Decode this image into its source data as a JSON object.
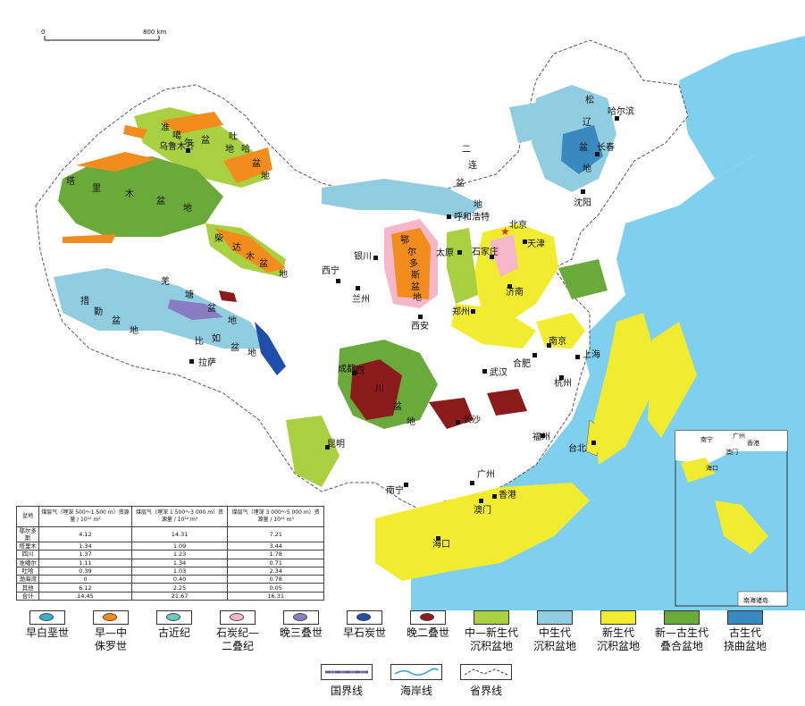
{
  "scale_bar": {
    "start": "0",
    "end": "800 km"
  },
  "labels": {
    "junggar": [
      "准",
      "噶",
      "尔",
      "盆",
      "地"
    ],
    "tarim": [
      "塔",
      "里",
      "木",
      "盆",
      "地"
    ],
    "tuha": [
      "吐",
      "哈",
      "盆",
      "地"
    ],
    "qaidam": [
      "柴",
      "达",
      "木",
      "盆",
      "地"
    ],
    "ordos": [
      "鄂",
      "尔",
      "多",
      "斯",
      "盆",
      "地"
    ],
    "songliao": [
      "松",
      "辽",
      "盆",
      "地"
    ],
    "erlian": [
      "二",
      "连",
      "盆",
      "地"
    ],
    "qiangtang": [
      "羌",
      "塘",
      "盆",
      "地"
    ],
    "cuoqin": [
      "措",
      "勤",
      "盆",
      "地"
    ],
    "bianbiancong": [
      "比",
      "如",
      "盆",
      "地"
    ],
    "sichuan": [
      "四",
      "川",
      "盆",
      "地"
    ]
  },
  "cities": {
    "urumqi": "乌鲁木齐",
    "harbin": "哈尔滨",
    "changchun": "长春",
    "shenyang": "沈阳",
    "beijing": "北京",
    "tianjin": "天津",
    "hohhot": "呼和浩特",
    "taiyuan": "太原",
    "shijiazhuang": "石家庄",
    "jinan": "济南",
    "yinchuan": "银川",
    "xining": "西宁",
    "lanzhou": "兰州",
    "zhengzhou": "郑州",
    "xian": "西安",
    "nanjing": "南京",
    "shanghai": "上海",
    "hefei": "合肥",
    "wuhan": "武汉",
    "hangzhou": "杭州",
    "chengdu": "成都",
    "lhasa": "拉萨",
    "changsha": "长沙",
    "fuzhou": "福州",
    "taipei": "台北",
    "kunming": "昆明",
    "guangzhou": "广州",
    "nanning": "南宁",
    "hongkong": "香港",
    "macao": "澳门",
    "haikou": "海口"
  },
  "inset": {
    "title": "南海诸岛",
    "cities": {
      "nanning": "南宁",
      "guangzhou": "广州",
      "hongkong": "香港",
      "macao": "澳门",
      "haikou": "海口"
    }
  },
  "table": {
    "headers": [
      "盆地",
      "煤层气（埋深 500～1 500 m）资源量 / 10¹² m³",
      "煤层气（埋深 1 500～3 000 m）资源量 / 10¹² m³",
      "煤层气（埋深 3 000～5 000 m）资源量 / 10¹² m³"
    ],
    "rows": [
      [
        "鄂尔多斯",
        "4.12",
        "14.31",
        "7.21"
      ],
      [
        "塔里木",
        "1.34",
        "1.09",
        "3.44"
      ],
      [
        "四川",
        "1.37",
        "1.23",
        "1.78"
      ],
      [
        "准噶尔",
        "1.11",
        "1.34",
        "0.71"
      ],
      [
        "吐哈",
        "0.39",
        "1.03",
        "2.34"
      ],
      [
        "渤海湾",
        "0",
        "0.40",
        "0.78"
      ],
      [
        "其他",
        "6.12",
        "2.25",
        "0.05"
      ],
      [
        "合计",
        "14.45",
        "21.67",
        "16.31"
      ]
    ]
  },
  "legend": {
    "items": [
      {
        "line1": "早白垩世",
        "line2": "",
        "color": "#3ab0c8",
        "type": "ellipse"
      },
      {
        "line1": "早—中",
        "line2": "侏罗世",
        "color": "#f28c1c",
        "type": "ellipse"
      },
      {
        "line1": "古近纪",
        "line2": "",
        "color": "#66ccc0",
        "type": "ellipse"
      },
      {
        "line1": "石炭纪—",
        "line2": "二叠纪",
        "color": "#f6b8c8",
        "type": "ellipse"
      },
      {
        "line1": "晚三叠世",
        "line2": "",
        "color": "#8a7cc0",
        "type": "ellipse"
      },
      {
        "line1": "早石炭世",
        "line2": "",
        "color": "#1f4fa8",
        "type": "ellipse"
      },
      {
        "line1": "晚二叠世",
        "line2": "",
        "color": "#8b1a1a",
        "type": "ellipse"
      },
      {
        "line1": "中—新生代",
        "line2": "沉积盆地",
        "color": "#a8d040",
        "type": "fill"
      },
      {
        "line1": "中生代",
        "line2": "沉积盆地",
        "color": "#90cde0",
        "type": "fill"
      },
      {
        "line1": "新生代",
        "line2": "沉积盆地",
        "color": "#f2ec30",
        "type": "fill"
      },
      {
        "line1": "新—古生代",
        "line2": "叠合盆地",
        "color": "#6aaa3a",
        "type": "fill"
      },
      {
        "line1": "古生代",
        "line2": "挠曲盆地",
        "color": "#3a88c0",
        "type": "fill"
      }
    ],
    "lines": [
      {
        "label": "国界线",
        "icon": "national-border-icon"
      },
      {
        "label": "海岸线",
        "icon": "coastline-icon"
      },
      {
        "label": "省界线",
        "icon": "provincial-border-icon"
      }
    ]
  },
  "colors": {
    "sea": "#7fd0ee",
    "land": "#ffffff",
    "neighbor": "#ffffff"
  }
}
